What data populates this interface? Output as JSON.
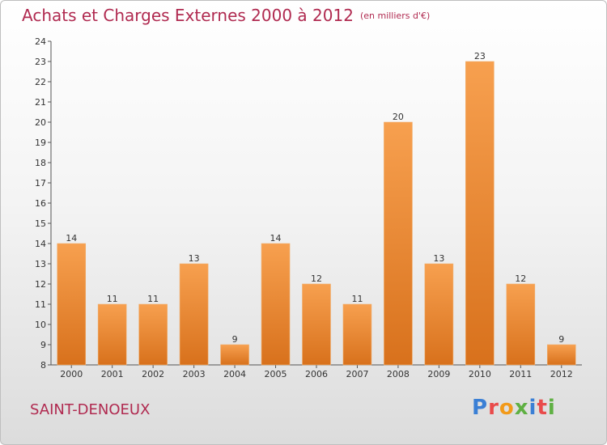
{
  "title": "Achats et Charges Externes 2000 à 2012",
  "unit": "(en milliers d'€)",
  "commune": "SAINT-DENOEUX",
  "brand": "Proxiti",
  "brand_colors": [
    "#3a7fd5",
    "#e94b4b",
    "#f29a1a",
    "#5fb043",
    "#3a7fd5",
    "#e94b4b",
    "#5fb043"
  ],
  "colors": {
    "title": "#b02a50",
    "bar_top": "#f7a04f",
    "bar_bottom": "#d8711c"
  },
  "chart_data": {
    "type": "bar",
    "categories": [
      "2000",
      "2001",
      "2002",
      "2003",
      "2004",
      "2005",
      "2006",
      "2007",
      "2008",
      "2009",
      "2010",
      "2011",
      "2012"
    ],
    "values": [
      14,
      11,
      11,
      13,
      9,
      14,
      12,
      11,
      20,
      13,
      23,
      12,
      9
    ],
    "ylim": [
      8,
      24
    ],
    "yticks": [
      8,
      9,
      10,
      11,
      12,
      13,
      14,
      15,
      16,
      17,
      18,
      19,
      20,
      21,
      22,
      23,
      24
    ],
    "grid": false,
    "data_labels": true
  }
}
